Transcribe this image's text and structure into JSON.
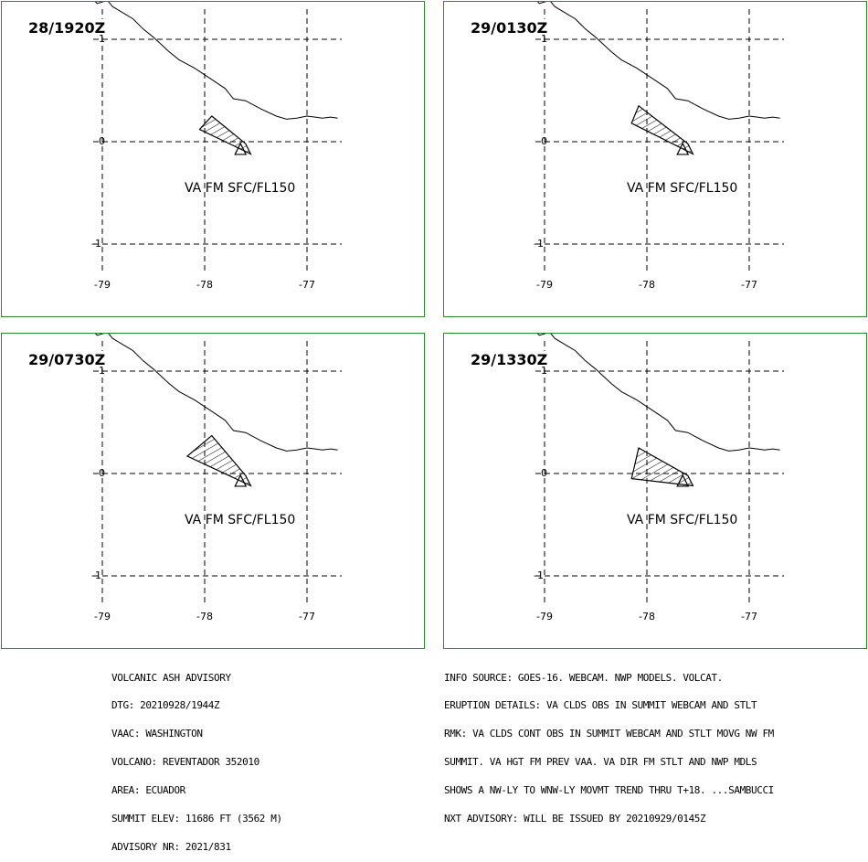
{
  "panels": [
    {
      "time": "28/1920Z",
      "va_label": "VA FM SFC/FL150",
      "lat_labels": [
        "1",
        "0",
        "-1"
      ],
      "lon_labels": [
        "-79",
        "-78",
        "-77"
      ],
      "ash_polygon": [
        [
          -77.93,
          0.25
        ],
        [
          -78.05,
          0.12
        ],
        [
          -77.55,
          -0.12
        ],
        [
          -77.6,
          -0.02
        ]
      ],
      "vent": [
        -77.65,
        -0.08
      ]
    },
    {
      "time": "29/0130Z",
      "va_label": "VA FM SFC/FL150",
      "lat_labels": [
        "1",
        "0",
        "-1"
      ],
      "lon_labels": [
        "-79",
        "-78",
        "-77"
      ],
      "ash_polygon": [
        [
          -78.08,
          0.35
        ],
        [
          -78.15,
          0.18
        ],
        [
          -77.55,
          -0.12
        ],
        [
          -77.6,
          -0.02
        ]
      ],
      "vent": [
        -77.65,
        -0.08
      ]
    },
    {
      "time": "29/0730Z",
      "va_label": "VA FM SFC/FL150",
      "lat_labels": [
        "1",
        "0",
        "-1"
      ],
      "lon_labels": [
        "-79",
        "-78",
        "-77"
      ],
      "ash_polygon": [
        [
          -77.93,
          0.37
        ],
        [
          -78.17,
          0.17
        ],
        [
          -77.55,
          -0.12
        ],
        [
          -77.6,
          -0.02
        ]
      ],
      "vent": [
        -77.65,
        -0.08
      ]
    },
    {
      "time": "29/1330Z",
      "va_label": "VA FM SFC/FL150",
      "lat_labels": [
        "1",
        "0",
        "-1"
      ],
      "lon_labels": [
        "-79",
        "-78",
        "-77"
      ],
      "ash_polygon": [
        [
          -78.08,
          0.25
        ],
        [
          -78.15,
          -0.05
        ],
        [
          -77.55,
          -0.12
        ],
        [
          -77.6,
          -0.02
        ]
      ],
      "vent": [
        -77.65,
        -0.08
      ]
    }
  ],
  "coastline": [
    [
      -79.1,
      1.4
    ],
    [
      -79.05,
      1.35
    ],
    [
      -78.95,
      1.38
    ],
    [
      -78.9,
      1.32
    ],
    [
      -78.8,
      1.26
    ],
    [
      -78.7,
      1.2
    ],
    [
      -78.6,
      1.1
    ],
    [
      -78.5,
      1.02
    ],
    [
      -78.35,
      0.88
    ],
    [
      -78.25,
      0.8
    ],
    [
      -78.1,
      0.72
    ],
    [
      -77.92,
      0.6
    ],
    [
      -77.8,
      0.52
    ],
    [
      -77.72,
      0.42
    ],
    [
      -77.6,
      0.4
    ],
    [
      -77.45,
      0.32
    ],
    [
      -77.3,
      0.25
    ],
    [
      -77.2,
      0.22
    ],
    [
      -77.1,
      0.23
    ],
    [
      -77.0,
      0.25
    ],
    [
      -76.92,
      0.24
    ],
    [
      -76.85,
      0.23
    ],
    [
      -76.77,
      0.24
    ],
    [
      -76.7,
      0.23
    ]
  ],
  "advisory_left": [
    "VOLCANIC ASH ADVISORY",
    "DTG: 20210928/1944Z",
    "VAAC: WASHINGTON",
    "VOLCANO: REVENTADOR 352010",
    "AREA: ECUADOR",
    "SUMMIT ELEV: 11686 FT (3562 M)",
    "ADVISORY NR: 2021/831"
  ],
  "advisory_right": [
    "INFO SOURCE: GOES-16. WEBCAM. NWP MODELS. VOLCAT.",
    "ERUPTION DETAILS: VA CLDS OBS IN SUMMIT WEBCAM AND STLT",
    "RMK: VA CLDS CONT OBS IN SUMMIT WEBCAM AND STLT MOVG NW FM",
    "SUMMIT. VA HGT FM PREV VAA. VA DIR FM STLT AND NWP MDLS",
    "SHOWS A NW-LY TO WNW-LY MOVMT TREND THRU T+18. ...SAMBUCCI",
    "NXT ADVISORY: WILL BE ISSUED BY 20210929/0145Z"
  ],
  "colors": {
    "frame": "#2a8a2a",
    "grid": "#000000",
    "coast": "#000000"
  }
}
